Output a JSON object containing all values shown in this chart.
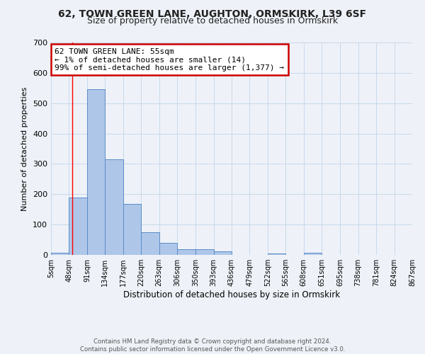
{
  "title": "62, TOWN GREEN LANE, AUGHTON, ORMSKIRK, L39 6SF",
  "subtitle": "Size of property relative to detached houses in Ormskirk",
  "xlabel": "Distribution of detached houses by size in Ormskirk",
  "ylabel": "Number of detached properties",
  "bar_values": [
    8,
    190,
    545,
    315,
    168,
    75,
    40,
    18,
    18,
    12,
    0,
    0,
    5,
    0,
    8,
    0,
    0,
    0,
    0,
    0
  ],
  "bin_edges": [
    5,
    48,
    91,
    134,
    177,
    220,
    263,
    306,
    350,
    393,
    436,
    479,
    522,
    565,
    608,
    651,
    695,
    738,
    781,
    824,
    867
  ],
  "tick_labels": [
    "5sqm",
    "48sqm",
    "91sqm",
    "134sqm",
    "177sqm",
    "220sqm",
    "263sqm",
    "306sqm",
    "350sqm",
    "393sqm",
    "436sqm",
    "479sqm",
    "522sqm",
    "565sqm",
    "608sqm",
    "651sqm",
    "695sqm",
    "738sqm",
    "781sqm",
    "824sqm",
    "867sqm"
  ],
  "bar_color": "#aec6e8",
  "bar_edge_color": "#5b8cc8",
  "ylim": [
    0,
    700
  ],
  "yticks": [
    0,
    100,
    200,
    300,
    400,
    500,
    600,
    700
  ],
  "red_line_x": 55,
  "annotation_text": "62 TOWN GREEN LANE: 55sqm\n← 1% of detached houses are smaller (14)\n99% of semi-detached houses are larger (1,377) →",
  "annotation_box_color": "#ffffff",
  "annotation_box_edge_color": "#cc0000",
  "footer_text": "Contains HM Land Registry data © Crown copyright and database right 2024.\nContains public sector information licensed under the Open Government Licence v3.0.",
  "grid_color": "#c8d8ea",
  "background_color": "#eef2f8",
  "title_fontsize": 10,
  "subtitle_fontsize": 9,
  "ylabel_fontsize": 8,
  "xlabel_fontsize": 8.5,
  "ytick_fontsize": 8,
  "xtick_fontsize": 7
}
